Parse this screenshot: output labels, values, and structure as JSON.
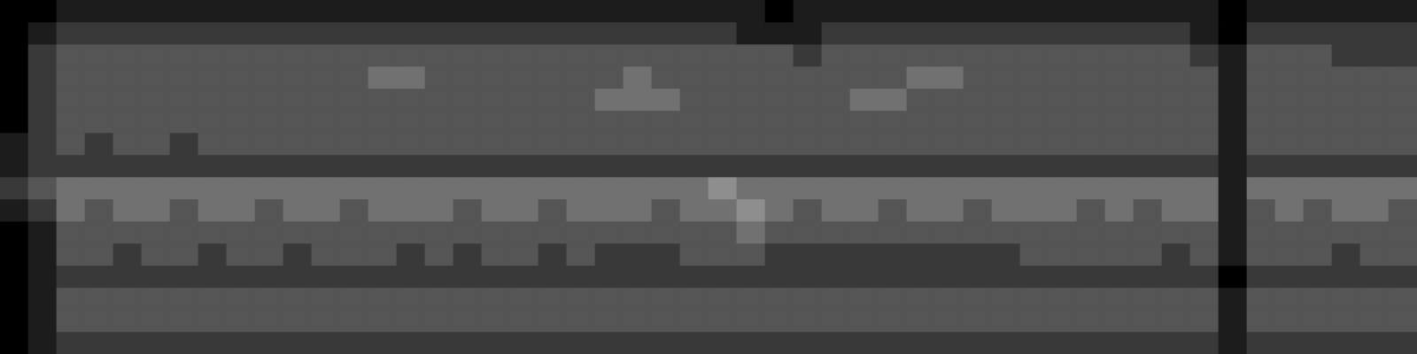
{
  "chart_data": {
    "type": "heatmap",
    "tick_labels": false,
    "grid": false,
    "cell_range": [
      0,
      9
    ],
    "cells": [
      [
        0,
        0,
        1,
        1,
        1,
        1,
        1,
        1,
        1,
        1,
        1,
        1,
        1,
        1,
        1,
        1,
        1,
        1,
        1,
        1,
        1,
        1,
        1,
        1,
        1,
        1,
        1,
        0,
        1,
        1,
        1,
        1,
        1,
        1,
        1,
        1,
        1,
        1,
        1,
        1,
        1,
        1,
        1,
        0,
        1,
        1,
        1,
        1,
        1,
        1
      ],
      [
        0,
        1,
        2,
        2,
        2,
        2,
        2,
        2,
        2,
        2,
        2,
        2,
        2,
        2,
        2,
        2,
        2,
        2,
        2,
        2,
        2,
        2,
        2,
        2,
        2,
        2,
        1,
        1,
        1,
        2,
        2,
        2,
        2,
        2,
        2,
        2,
        2,
        2,
        2,
        2,
        2,
        2,
        1,
        0,
        2,
        2,
        2,
        2,
        2,
        2
      ],
      [
        0,
        2,
        3,
        3,
        3,
        3,
        3,
        3,
        3,
        3,
        3,
        3,
        3,
        3,
        3,
        3,
        3,
        3,
        3,
        3,
        3,
        3,
        3,
        3,
        3,
        3,
        3,
        3,
        2,
        3,
        3,
        3,
        3,
        3,
        3,
        3,
        3,
        3,
        3,
        3,
        3,
        3,
        2,
        1,
        3,
        3,
        3,
        2,
        2,
        2
      ],
      [
        0,
        2,
        3,
        3,
        3,
        3,
        3,
        3,
        3,
        3,
        3,
        3,
        3,
        4,
        4,
        3,
        3,
        3,
        3,
        3,
        3,
        3,
        4,
        3,
        3,
        3,
        3,
        3,
        3,
        3,
        3,
        3,
        4,
        4,
        3,
        3,
        3,
        3,
        3,
        3,
        3,
        3,
        3,
        1,
        3,
        3,
        3,
        3,
        3,
        3
      ],
      [
        0,
        2,
        3,
        3,
        3,
        3,
        3,
        3,
        3,
        3,
        3,
        3,
        3,
        3,
        3,
        3,
        3,
        3,
        3,
        3,
        3,
        4,
        4,
        4,
        3,
        3,
        3,
        3,
        3,
        3,
        4,
        4,
        3,
        3,
        3,
        3,
        3,
        3,
        3,
        3,
        3,
        3,
        3,
        1,
        3,
        3,
        3,
        3,
        3,
        3
      ],
      [
        0,
        2,
        3,
        3,
        3,
        3,
        3,
        3,
        3,
        3,
        3,
        3,
        3,
        3,
        3,
        3,
        3,
        3,
        3,
        3,
        3,
        3,
        3,
        3,
        3,
        3,
        3,
        3,
        3,
        3,
        3,
        3,
        3,
        3,
        3,
        3,
        3,
        3,
        3,
        3,
        3,
        3,
        3,
        1,
        3,
        3,
        3,
        3,
        3,
        3
      ],
      [
        1,
        2,
        3,
        2,
        3,
        3,
        2,
        3,
        3,
        3,
        3,
        3,
        3,
        3,
        3,
        3,
        3,
        3,
        3,
        3,
        3,
        3,
        3,
        3,
        3,
        3,
        3,
        3,
        3,
        3,
        3,
        3,
        3,
        3,
        3,
        3,
        3,
        3,
        3,
        3,
        3,
        3,
        3,
        1,
        3,
        3,
        3,
        3,
        3,
        3
      ],
      [
        1,
        2,
        2,
        2,
        2,
        2,
        2,
        2,
        2,
        2,
        2,
        2,
        2,
        2,
        2,
        2,
        2,
        2,
        2,
        2,
        2,
        2,
        2,
        2,
        2,
        2,
        2,
        2,
        2,
        2,
        2,
        2,
        2,
        2,
        2,
        2,
        2,
        2,
        2,
        2,
        2,
        2,
        2,
        1,
        2,
        2,
        2,
        2,
        2,
        2
      ],
      [
        2,
        3,
        4,
        4,
        4,
        4,
        4,
        4,
        4,
        4,
        4,
        4,
        4,
        4,
        4,
        4,
        4,
        4,
        4,
        4,
        4,
        4,
        4,
        4,
        4,
        5,
        4,
        4,
        4,
        4,
        4,
        4,
        4,
        4,
        4,
        4,
        4,
        4,
        4,
        4,
        4,
        4,
        4,
        1,
        4,
        4,
        4,
        4,
        4,
        4
      ],
      [
        1,
        2,
        4,
        3,
        4,
        4,
        3,
        4,
        4,
        3,
        4,
        4,
        3,
        4,
        4,
        4,
        3,
        4,
        4,
        3,
        4,
        4,
        4,
        3,
        4,
        4,
        5,
        4,
        3,
        4,
        4,
        3,
        4,
        4,
        3,
        4,
        4,
        4,
        3,
        4,
        3,
        4,
        4,
        1,
        3,
        4,
        3,
        4,
        4,
        3
      ],
      [
        0,
        1,
        3,
        3,
        3,
        3,
        3,
        3,
        3,
        3,
        3,
        3,
        3,
        3,
        3,
        3,
        3,
        3,
        3,
        3,
        3,
        3,
        3,
        3,
        3,
        3,
        4,
        3,
        3,
        3,
        3,
        3,
        3,
        3,
        3,
        3,
        3,
        3,
        3,
        3,
        3,
        3,
        3,
        1,
        3,
        3,
        3,
        3,
        3,
        3
      ],
      [
        0,
        1,
        3,
        3,
        2,
        3,
        3,
        2,
        3,
        3,
        2,
        3,
        3,
        3,
        2,
        3,
        2,
        3,
        3,
        2,
        3,
        2,
        2,
        2,
        3,
        3,
        3,
        2,
        2,
        2,
        2,
        2,
        2,
        2,
        2,
        2,
        3,
        3,
        3,
        3,
        3,
        2,
        3,
        1,
        3,
        3,
        3,
        2,
        3,
        3
      ],
      [
        0,
        1,
        2,
        2,
        2,
        2,
        2,
        2,
        2,
        2,
        2,
        2,
        2,
        2,
        2,
        2,
        2,
        2,
        2,
        2,
        2,
        2,
        2,
        2,
        2,
        2,
        2,
        2,
        2,
        2,
        2,
        2,
        2,
        2,
        2,
        2,
        2,
        2,
        2,
        2,
        2,
        2,
        2,
        0,
        2,
        2,
        2,
        2,
        2,
        2
      ],
      [
        0,
        1,
        3,
        3,
        3,
        3,
        3,
        3,
        3,
        3,
        3,
        3,
        3,
        3,
        3,
        3,
        3,
        3,
        3,
        3,
        3,
        3,
        3,
        3,
        3,
        3,
        3,
        3,
        3,
        3,
        3,
        3,
        3,
        3,
        3,
        3,
        3,
        3,
        3,
        3,
        3,
        3,
        3,
        1,
        3,
        3,
        3,
        3,
        3,
        3
      ],
      [
        0,
        1,
        3,
        3,
        3,
        3,
        3,
        3,
        3,
        3,
        3,
        3,
        3,
        3,
        3,
        3,
        3,
        3,
        3,
        3,
        3,
        3,
        3,
        3,
        3,
        3,
        3,
        3,
        3,
        3,
        3,
        3,
        3,
        3,
        3,
        3,
        3,
        3,
        3,
        3,
        3,
        3,
        3,
        1,
        3,
        3,
        3,
        3,
        3,
        3
      ],
      [
        0,
        1,
        2,
        2,
        2,
        2,
        2,
        2,
        2,
        2,
        2,
        2,
        2,
        2,
        2,
        2,
        2,
        2,
        2,
        2,
        2,
        2,
        2,
        2,
        2,
        2,
        2,
        2,
        2,
        2,
        2,
        2,
        2,
        2,
        2,
        2,
        2,
        2,
        2,
        2,
        2,
        2,
        2,
        1,
        2,
        2,
        2,
        2,
        2,
        2
      ]
    ]
  }
}
